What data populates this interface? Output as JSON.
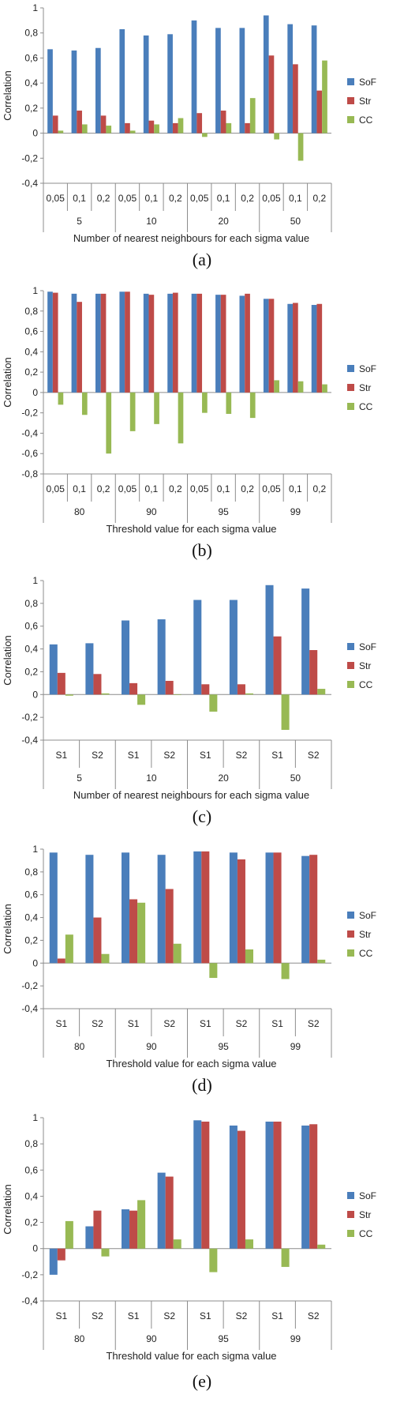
{
  "colors": {
    "SoF": "#4a7ebb",
    "Str": "#be4b48",
    "CC": "#98b954"
  },
  "chart_data": [
    {
      "type": "bar",
      "caption": "(a)",
      "ylabel": "Correlation",
      "xlabel": "Number of nearest neighbours for each sigma value",
      "ylim": [
        -0.4,
        1
      ],
      "yticks": [
        "-0,4",
        "-0,2",
        "0",
        "0,2",
        "0,4",
        "0,6",
        "0,8",
        "1"
      ],
      "grid": false,
      "legend_position": "right",
      "groups": [
        "5",
        "10",
        "20",
        "50"
      ],
      "categories": [
        "0,05",
        "0,1",
        "0,2",
        "0,05",
        "0,1",
        "0,2",
        "0,05",
        "0,1",
        "0,2",
        "0,05",
        "0,1",
        "0,2"
      ],
      "series": [
        {
          "name": "SoF",
          "values": [
            0.67,
            0.66,
            0.68,
            0.83,
            0.78,
            0.79,
            0.9,
            0.84,
            0.84,
            0.94,
            0.87,
            0.86
          ]
        },
        {
          "name": "Str",
          "values": [
            0.14,
            0.18,
            0.14,
            0.08,
            0.1,
            0.08,
            0.16,
            0.18,
            0.08,
            0.62,
            0.55,
            0.34
          ]
        },
        {
          "name": "CC",
          "values": [
            0.02,
            0.07,
            0.06,
            0.02,
            0.07,
            0.12,
            -0.03,
            0.08,
            0.28,
            -0.05,
            -0.22,
            0.58
          ]
        }
      ]
    },
    {
      "type": "bar",
      "caption": "(b)",
      "ylabel": "Correlation",
      "xlabel": "Threshold value for each sigma value",
      "ylim": [
        -0.8,
        1
      ],
      "yticks": [
        "-0,8",
        "-0,6",
        "-0,4",
        "-0,2",
        "0",
        "0,2",
        "0,4",
        "0,6",
        "0,8",
        "1"
      ],
      "grid": false,
      "legend_position": "right",
      "groups": [
        "80",
        "90",
        "95",
        "99"
      ],
      "categories": [
        "0,05",
        "0,1",
        "0,2",
        "0,05",
        "0,1",
        "0,2",
        "0,05",
        "0,1",
        "0,2",
        "0,05",
        "0,1",
        "0,2"
      ],
      "series": [
        {
          "name": "SoF",
          "values": [
            0.99,
            0.97,
            0.97,
            0.99,
            0.97,
            0.97,
            0.97,
            0.96,
            0.95,
            0.92,
            0.87,
            0.86
          ]
        },
        {
          "name": "Str",
          "values": [
            0.98,
            0.89,
            0.97,
            0.99,
            0.96,
            0.98,
            0.97,
            0.96,
            0.97,
            0.92,
            0.88,
            0.87
          ]
        },
        {
          "name": "CC",
          "values": [
            -0.12,
            -0.22,
            -0.6,
            -0.38,
            -0.31,
            -0.5,
            -0.2,
            -0.21,
            -0.25,
            0.12,
            0.11,
            0.08
          ]
        }
      ]
    },
    {
      "type": "bar",
      "caption": "(c)",
      "ylabel": "Correlation",
      "xlabel": "Number of nearest neighbours for each sigma value",
      "ylim": [
        -0.4,
        1
      ],
      "yticks": [
        "-0,4",
        "-0,2",
        "0",
        "0,2",
        "0,4",
        "0,6",
        "0,8",
        "1"
      ],
      "grid": false,
      "legend_position": "right",
      "groups": [
        "5",
        "10",
        "20",
        "50"
      ],
      "categories": [
        "S1",
        "S2",
        "S1",
        "S2",
        "S1",
        "S2",
        "S1",
        "S2"
      ],
      "series": [
        {
          "name": "SoF",
          "values": [
            0.44,
            0.45,
            0.65,
            0.66,
            0.83,
            0.83,
            0.96,
            0.93
          ]
        },
        {
          "name": "Str",
          "values": [
            0.19,
            0.18,
            0.1,
            0.12,
            0.09,
            0.09,
            0.51,
            0.39
          ]
        },
        {
          "name": "CC",
          "values": [
            -0.01,
            0.01,
            -0.09,
            0.0,
            -0.15,
            0.01,
            -0.31,
            0.05
          ]
        }
      ]
    },
    {
      "type": "bar",
      "caption": "(d)",
      "ylabel": "Correlation",
      "xlabel": "Threshold value for each sigma value",
      "ylim": [
        -0.4,
        1
      ],
      "yticks": [
        "-0,4",
        "-0,2",
        "0",
        "0,2",
        "0,4",
        "0,6",
        "0,8",
        "1"
      ],
      "grid": false,
      "legend_position": "right",
      "groups": [
        "80",
        "90",
        "95",
        "99"
      ],
      "categories": [
        "S1",
        "S2",
        "S1",
        "S2",
        "S1",
        "S2",
        "S1",
        "S2"
      ],
      "series": [
        {
          "name": "SoF",
          "values": [
            0.97,
            0.95,
            0.97,
            0.95,
            0.98,
            0.97,
            0.97,
            0.94
          ]
        },
        {
          "name": "Str",
          "values": [
            0.04,
            0.4,
            0.56,
            0.65,
            0.98,
            0.91,
            0.97,
            0.95
          ]
        },
        {
          "name": "CC",
          "values": [
            0.25,
            0.08,
            0.53,
            0.17,
            -0.13,
            0.12,
            -0.14,
            0.03
          ]
        }
      ]
    },
    {
      "type": "bar",
      "caption": "(e)",
      "ylabel": "Correlation",
      "xlabel": "Threshold value for each sigma value",
      "ylim": [
        -0.4,
        1
      ],
      "yticks": [
        "-0,4",
        "-0,2",
        "0",
        "0,2",
        "0,4",
        "0,6",
        "0,8",
        "1"
      ],
      "grid": false,
      "legend_position": "right",
      "groups": [
        "80",
        "90",
        "95",
        "99"
      ],
      "categories": [
        "S1",
        "S2",
        "S1",
        "S2",
        "S1",
        "S2",
        "S1",
        "S2"
      ],
      "series": [
        {
          "name": "SoF",
          "values": [
            -0.2,
            0.17,
            0.3,
            0.58,
            0.98,
            0.94,
            0.97,
            0.94
          ]
        },
        {
          "name": "Str",
          "values": [
            -0.09,
            0.29,
            0.29,
            0.55,
            0.97,
            0.9,
            0.97,
            0.95
          ]
        },
        {
          "name": "CC",
          "values": [
            0.21,
            -0.06,
            0.37,
            0.07,
            -0.18,
            0.07,
            -0.14,
            0.03
          ]
        }
      ]
    }
  ]
}
